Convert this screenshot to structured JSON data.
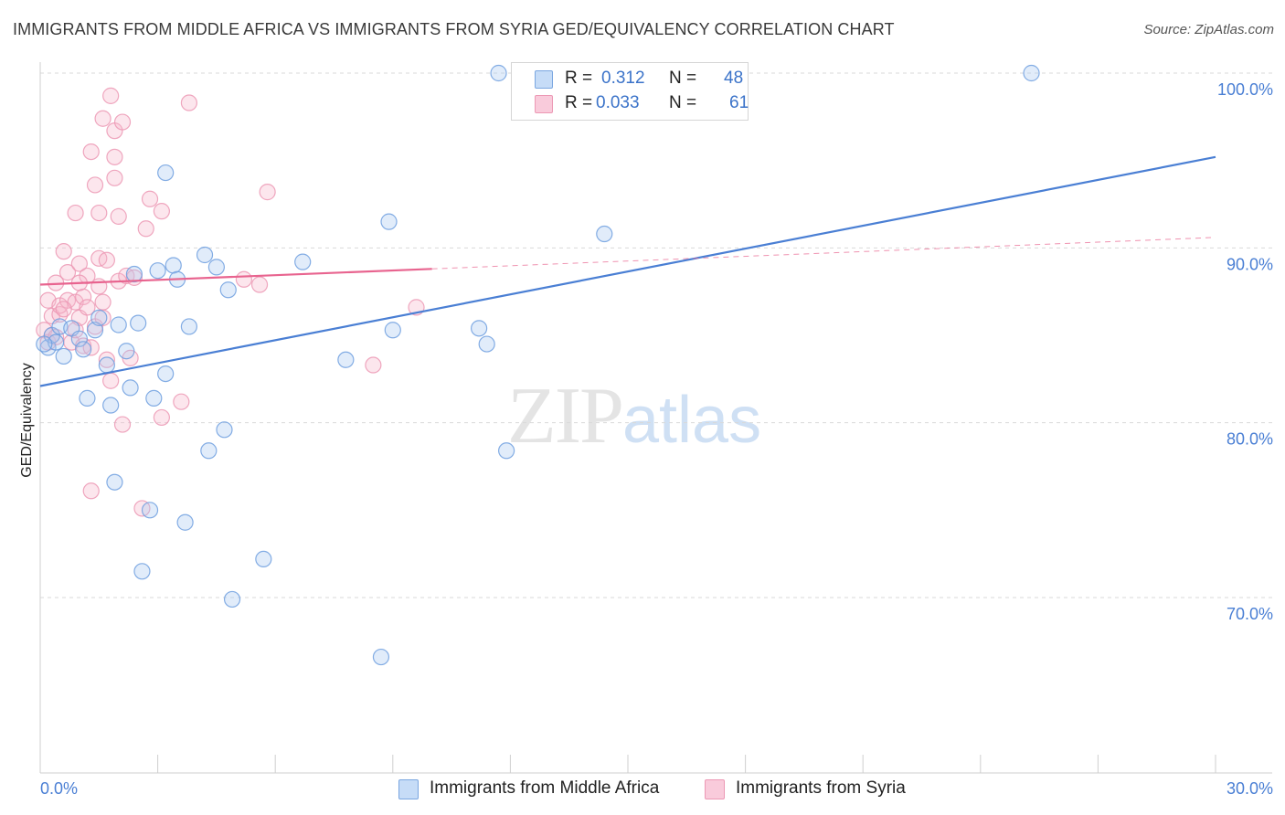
{
  "header": {
    "title": "IMMIGRANTS FROM MIDDLE AFRICA VS IMMIGRANTS FROM SYRIA GED/EQUIVALENCY CORRELATION CHART",
    "source": "Source: ZipAtlas.com"
  },
  "watermark": {
    "zip": "ZIP",
    "atlas": "atlas"
  },
  "legend": {
    "rows": [
      {
        "r_label": "R =",
        "r_value": "0.312",
        "n_label": "N =",
        "n_value": "48",
        "color": "#a9c8f0"
      },
      {
        "r_label": "R =",
        "r_value": "0.033",
        "n_label": "N =",
        "n_value": "61",
        "color": "#f7b6cb"
      }
    ]
  },
  "bottom_legend": {
    "series1": "Immigrants from Middle Africa",
    "series2": "Immigrants from Syria"
  },
  "chart_data": {
    "type": "scatter",
    "title": "IMMIGRANTS FROM MIDDLE AFRICA VS IMMIGRANTS FROM SYRIA GED/EQUIVALENCY CORRELATION CHART",
    "ylabel": "GED/Equivalency",
    "xlabel": "",
    "xlim": [
      0,
      30
    ],
    "ylim": [
      60,
      100
    ],
    "x_tick_labels": [
      "0.0%",
      "30.0%"
    ],
    "y_ticks": [
      70,
      80,
      90,
      100
    ],
    "y_tick_labels": [
      "70.0%",
      "80.0%",
      "90.0%",
      "100.0%"
    ],
    "grid": "horizontal dashed",
    "legend_position": "top-center",
    "colors": {
      "blue": "#4a7fd4",
      "blue_fill": "#a9c8f0",
      "pink": "#e8648f",
      "pink_fill": "#f7b6cb"
    },
    "series": [
      {
        "name": "Immigrants from Middle Africa",
        "color": "blue",
        "points": [
          [
            0.2,
            84.3
          ],
          [
            0.3,
            85.0
          ],
          [
            0.4,
            84.6
          ],
          [
            0.5,
            85.5
          ],
          [
            0.6,
            83.8
          ],
          [
            0.8,
            85.4
          ],
          [
            1.0,
            84.8
          ],
          [
            1.1,
            84.2
          ],
          [
            1.2,
            81.4
          ],
          [
            1.4,
            85.3
          ],
          [
            1.5,
            86.0
          ],
          [
            1.7,
            83.3
          ],
          [
            1.8,
            81.0
          ],
          [
            1.9,
            76.6
          ],
          [
            2.0,
            85.6
          ],
          [
            2.2,
            84.1
          ],
          [
            2.3,
            82.0
          ],
          [
            2.4,
            88.5
          ],
          [
            2.5,
            85.7
          ],
          [
            2.6,
            71.5
          ],
          [
            2.8,
            75.0
          ],
          [
            2.9,
            81.4
          ],
          [
            3.0,
            88.7
          ],
          [
            3.2,
            82.8
          ],
          [
            3.2,
            94.3
          ],
          [
            3.4,
            89.0
          ],
          [
            3.5,
            88.2
          ],
          [
            3.7,
            74.3
          ],
          [
            3.8,
            85.5
          ],
          [
            4.2,
            89.6
          ],
          [
            4.3,
            78.4
          ],
          [
            4.5,
            88.9
          ],
          [
            4.7,
            79.6
          ],
          [
            4.8,
            87.6
          ],
          [
            4.9,
            69.9
          ],
          [
            5.7,
            72.2
          ],
          [
            6.7,
            89.2
          ],
          [
            7.8,
            83.6
          ],
          [
            8.7,
            66.6
          ],
          [
            8.9,
            91.5
          ],
          [
            9.0,
            85.3
          ],
          [
            11.2,
            85.4
          ],
          [
            11.4,
            84.5
          ],
          [
            11.7,
            100.0
          ],
          [
            11.9,
            78.4
          ],
          [
            14.4,
            90.8
          ],
          [
            25.3,
            100.0
          ],
          [
            0.1,
            84.5
          ]
        ],
        "trendline": {
          "x": [
            0,
            30
          ],
          "y": [
            82.1,
            95.2
          ]
        }
      },
      {
        "name": "Immigrants from Syria",
        "color": "pink",
        "points": [
          [
            0.1,
            85.3
          ],
          [
            0.2,
            84.6
          ],
          [
            0.2,
            87.0
          ],
          [
            0.3,
            86.1
          ],
          [
            0.4,
            88.0
          ],
          [
            0.5,
            86.2
          ],
          [
            0.5,
            86.7
          ],
          [
            0.6,
            89.8
          ],
          [
            0.7,
            87.0
          ],
          [
            0.7,
            88.6
          ],
          [
            0.8,
            84.6
          ],
          [
            0.9,
            86.9
          ],
          [
            0.9,
            92.0
          ],
          [
            1.0,
            89.1
          ],
          [
            1.0,
            86.0
          ],
          [
            1.1,
            87.2
          ],
          [
            1.1,
            84.4
          ],
          [
            1.2,
            86.6
          ],
          [
            1.2,
            88.4
          ],
          [
            1.3,
            76.1
          ],
          [
            1.3,
            95.5
          ],
          [
            1.4,
            93.6
          ],
          [
            1.4,
            85.5
          ],
          [
            1.5,
            89.4
          ],
          [
            1.5,
            92.0
          ],
          [
            1.5,
            87.8
          ],
          [
            1.6,
            86.9
          ],
          [
            1.6,
            97.4
          ],
          [
            1.7,
            89.3
          ],
          [
            1.7,
            83.6
          ],
          [
            1.8,
            82.4
          ],
          [
            1.8,
            98.7
          ],
          [
            1.9,
            94.0
          ],
          [
            1.9,
            96.7
          ],
          [
            1.9,
            95.2
          ],
          [
            2.0,
            91.8
          ],
          [
            2.0,
            88.1
          ],
          [
            2.1,
            97.2
          ],
          [
            2.1,
            79.9
          ],
          [
            2.2,
            88.4
          ],
          [
            2.3,
            83.7
          ],
          [
            2.6,
            75.1
          ],
          [
            2.7,
            91.1
          ],
          [
            2.8,
            92.8
          ],
          [
            3.1,
            80.3
          ],
          [
            3.1,
            92.1
          ],
          [
            3.6,
            81.2
          ],
          [
            3.8,
            98.3
          ],
          [
            5.2,
            88.2
          ],
          [
            5.6,
            87.9
          ],
          [
            5.8,
            93.2
          ],
          [
            8.5,
            83.3
          ],
          [
            9.6,
            86.6
          ],
          [
            0.3,
            85.0
          ],
          [
            0.9,
            85.3
          ],
          [
            1.3,
            84.3
          ],
          [
            0.6,
            86.5
          ],
          [
            1.0,
            88.0
          ],
          [
            0.4,
            84.9
          ],
          [
            2.4,
            88.3
          ],
          [
            1.6,
            86.0
          ]
        ],
        "trendline": {
          "x": [
            0,
            10
          ],
          "y": [
            87.9,
            88.8
          ],
          "dashed_extension": {
            "x": [
              10,
              30
            ],
            "y": [
              88.8,
              90.6
            ]
          }
        }
      }
    ]
  }
}
